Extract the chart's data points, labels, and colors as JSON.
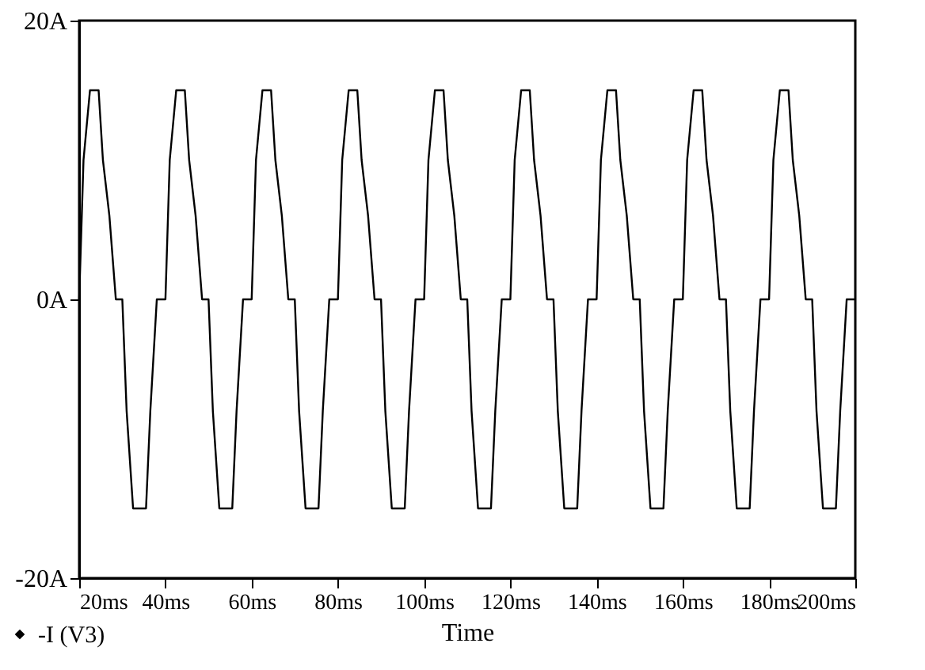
{
  "chart_data": {
    "type": "line",
    "xlabel": "Time",
    "legend": "bottom left",
    "grid": false,
    "marker": "none",
    "line_style": "solid",
    "xlim": [
      20,
      200
    ],
    "ylim": [
      -20,
      20
    ],
    "xticks": [
      {
        "value": 20,
        "label": "20ms"
      },
      {
        "value": 40,
        "label": "40ms"
      },
      {
        "value": 60,
        "label": "60ms"
      },
      {
        "value": 80,
        "label": "80ms"
      },
      {
        "value": 100,
        "label": "100ms"
      },
      {
        "value": 120,
        "label": "120ms"
      },
      {
        "value": 140,
        "label": "140ms"
      },
      {
        "value": 160,
        "label": "160ms"
      },
      {
        "value": 180,
        "label": "180ms"
      },
      {
        "value": 200,
        "label": "200ms"
      }
    ],
    "yticks": [
      {
        "value": -20,
        "label": "-20A"
      },
      {
        "value": 0,
        "label": "0A"
      },
      {
        "value": 20,
        "label": "20A"
      }
    ],
    "x": [
      20,
      21,
      22.5,
      24.5,
      25.5,
      27,
      28.5,
      30,
      31,
      32.5,
      35.5,
      36.5,
      38,
      40,
      41,
      42.5,
      44.5,
      45.5,
      47,
      48.5,
      50,
      51,
      52.5,
      55.5,
      56.5,
      58,
      60,
      61,
      62.5,
      64.5,
      65.5,
      67,
      68.5,
      70,
      71,
      72.5,
      75.5,
      76.5,
      78,
      80,
      81,
      82.5,
      84.5,
      85.5,
      87,
      88.5,
      90,
      91,
      92.5,
      95.5,
      96.5,
      98,
      100,
      101,
      102.5,
      104.5,
      105.5,
      107,
      108.5,
      110,
      111,
      112.5,
      115.5,
      116.5,
      118,
      120,
      121,
      122.5,
      124.5,
      125.5,
      127,
      128.5,
      130,
      131,
      132.5,
      135.5,
      136.5,
      138,
      140,
      141,
      142.5,
      144.5,
      145.5,
      147,
      148.5,
      150,
      151,
      152.5,
      155.5,
      156.5,
      158,
      160,
      161,
      162.5,
      164.5,
      165.5,
      167,
      168.5,
      170,
      171,
      172.5,
      175.5,
      176.5,
      178,
      180,
      181,
      182.5,
      184.5,
      185.5,
      187,
      188.5,
      190,
      191,
      192.5,
      195.5,
      196.5,
      198,
      200
    ],
    "series": [
      {
        "name": "-I (V3)",
        "color": "#000000",
        "values": [
          0,
          10,
          15,
          15,
          10,
          6,
          0,
          0,
          -8,
          -15,
          -15,
          -8,
          0,
          0,
          10,
          15,
          15,
          10,
          6,
          0,
          0,
          -8,
          -15,
          -15,
          -8,
          0,
          0,
          10,
          15,
          15,
          10,
          6,
          0,
          0,
          -8,
          -15,
          -15,
          -8,
          0,
          0,
          10,
          15,
          15,
          10,
          6,
          0,
          0,
          -8,
          -15,
          -15,
          -8,
          0,
          0,
          10,
          15,
          15,
          10,
          6,
          0,
          0,
          -8,
          -15,
          -15,
          -8,
          0,
          0,
          10,
          15,
          15,
          10,
          6,
          0,
          0,
          -8,
          -15,
          -15,
          -8,
          0,
          0,
          10,
          15,
          15,
          10,
          6,
          0,
          0,
          -8,
          -15,
          -15,
          -8,
          0,
          0,
          10,
          15,
          15,
          10,
          6,
          0,
          0,
          -8,
          -15,
          -15,
          -8,
          0,
          0,
          10,
          15,
          15,
          10,
          6,
          0,
          0,
          -8,
          -15,
          -15,
          -8,
          0,
          0
        ]
      }
    ]
  }
}
